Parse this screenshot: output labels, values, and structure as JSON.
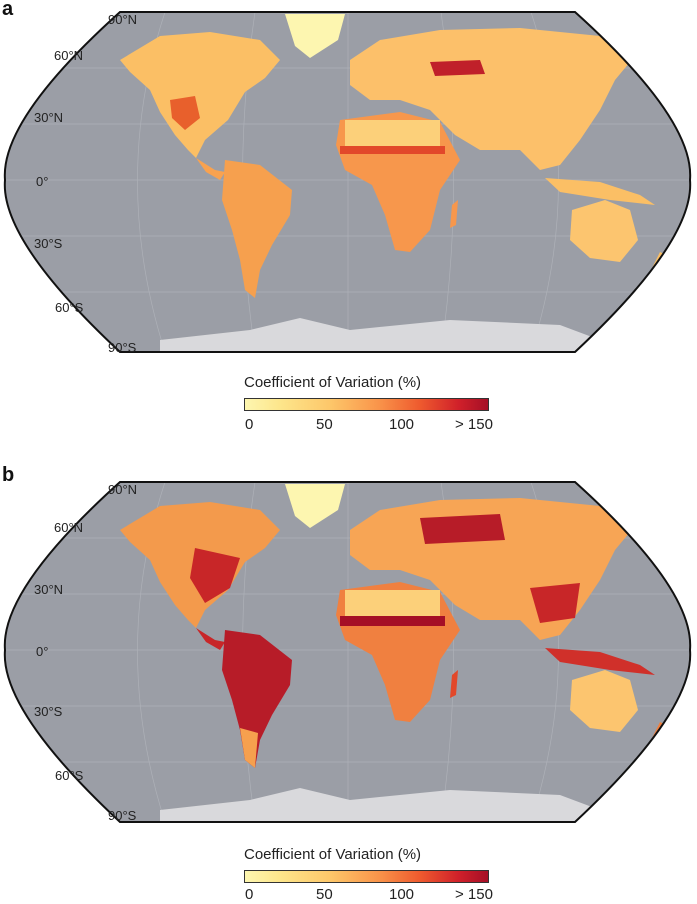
{
  "panels": [
    {
      "letter": "a",
      "latitudes": [
        "90°N",
        "60°N",
        "30°N",
        "0°",
        "30°S",
        "60°S",
        "90°S"
      ],
      "legend": {
        "title": "Coefficient of Variation (%)",
        "ticks": [
          "0",
          "50",
          "100",
          "> 150"
        ]
      }
    },
    {
      "letter": "b",
      "latitudes": [
        "90°N",
        "60°N",
        "30°N",
        "0°",
        "30°S",
        "60°S",
        "90°S"
      ],
      "legend": {
        "title": "Coefficient of Variation (%)",
        "ticks": [
          "0",
          "50",
          "100",
          "> 150"
        ]
      }
    }
  ],
  "colors": {
    "ocean": "#9b9ea6",
    "ice": "#d9d9dc",
    "greenland": "#fdf6b0",
    "scale_low": "#fdf6b0",
    "scale_mid": "#f9944a",
    "scale_high": "#a50f26"
  }
}
